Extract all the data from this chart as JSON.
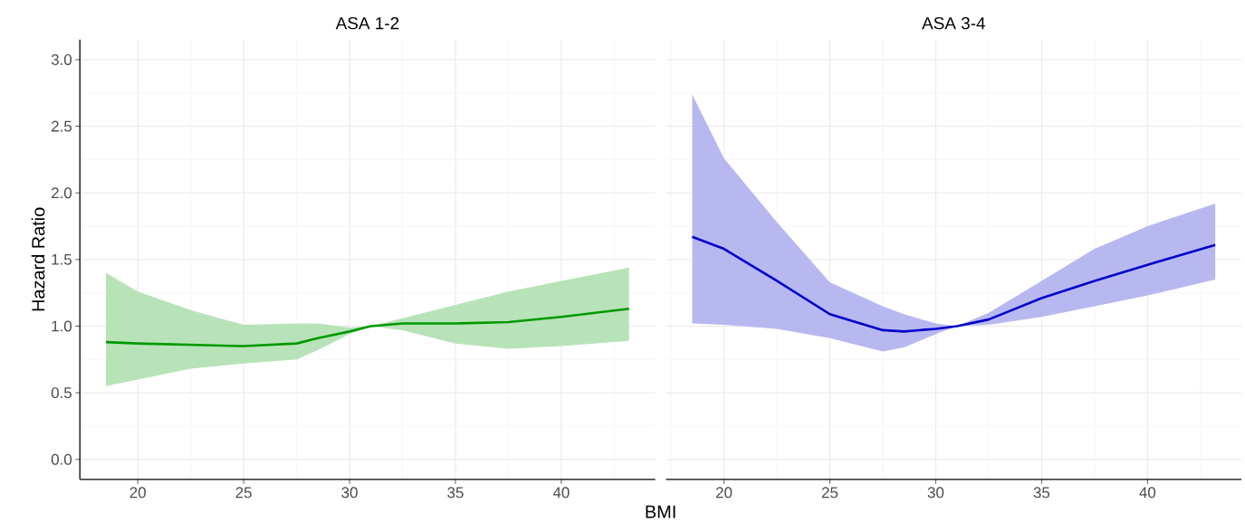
{
  "chart_data": [
    {
      "type": "line",
      "title": "ASA 1-2",
      "xlabel": "BMI",
      "ylabel": "Hazard Ratio",
      "grid": true,
      "marker": "none",
      "line_style": "solid",
      "x": [
        18.5,
        20,
        22.5,
        25,
        27.5,
        28.5,
        30,
        31,
        32.5,
        35,
        37.5,
        40,
        43.2
      ],
      "series": [
        {
          "color": "#009a00",
          "values": [
            0.88,
            0.87,
            0.86,
            0.85,
            0.87,
            0.91,
            0.96,
            1.0,
            1.02,
            1.02,
            1.03,
            1.07,
            1.13
          ],
          "lower": [
            0.55,
            0.6,
            0.68,
            0.72,
            0.75,
            0.82,
            0.94,
            1.0,
            0.97,
            0.87,
            0.83,
            0.85,
            0.89
          ],
          "upper": [
            1.4,
            1.26,
            1.12,
            1.01,
            1.02,
            1.02,
            0.99,
            1.0,
            1.06,
            1.16,
            1.26,
            1.34,
            1.44
          ]
        }
      ],
      "xlim": [
        17.265,
        44.435
      ],
      "ylim": [
        -0.15,
        3.15
      ],
      "xticks": [
        20,
        25,
        30,
        35,
        40
      ],
      "yticks": [
        {
          "value": 0,
          "label": "0.0"
        },
        {
          "value": 0.5,
          "label": "0.5"
        },
        {
          "value": 1,
          "label": "1.0"
        },
        {
          "value": 1.5,
          "label": "1.5"
        },
        {
          "value": 2,
          "label": "2.0"
        },
        {
          "value": 2.5,
          "label": "2.5"
        },
        {
          "value": 3,
          "label": "3.0"
        }
      ]
    },
    {
      "type": "line",
      "title": "ASA 3-4",
      "grid": true,
      "marker": "none",
      "line_style": "solid",
      "tick_labels": "x",
      "x": [
        18.5,
        20,
        22.5,
        25,
        27.5,
        28.5,
        30,
        31,
        32.5,
        35,
        37.5,
        40,
        43.2
      ],
      "series": [
        {
          "color": "#0000cc",
          "values": [
            1.67,
            1.58,
            1.34,
            1.09,
            0.97,
            0.96,
            0.98,
            1.0,
            1.05,
            1.21,
            1.34,
            1.46,
            1.61
          ],
          "lower": [
            1.02,
            1.01,
            0.98,
            0.91,
            0.81,
            0.84,
            0.94,
            1.0,
            1.01,
            1.07,
            1.15,
            1.23,
            1.35
          ],
          "upper": [
            2.74,
            2.26,
            1.78,
            1.33,
            1.15,
            1.09,
            1.02,
            1.0,
            1.1,
            1.34,
            1.58,
            1.75,
            1.92
          ]
        }
      ],
      "xlim": [
        17.265,
        44.435
      ],
      "ylim": [
        -0.15,
        3.15
      ],
      "xticks": [
        20,
        25,
        30,
        35,
        40
      ],
      "yticks": [
        0,
        0.5,
        1,
        1.5,
        2,
        2.5,
        3
      ]
    }
  ]
}
